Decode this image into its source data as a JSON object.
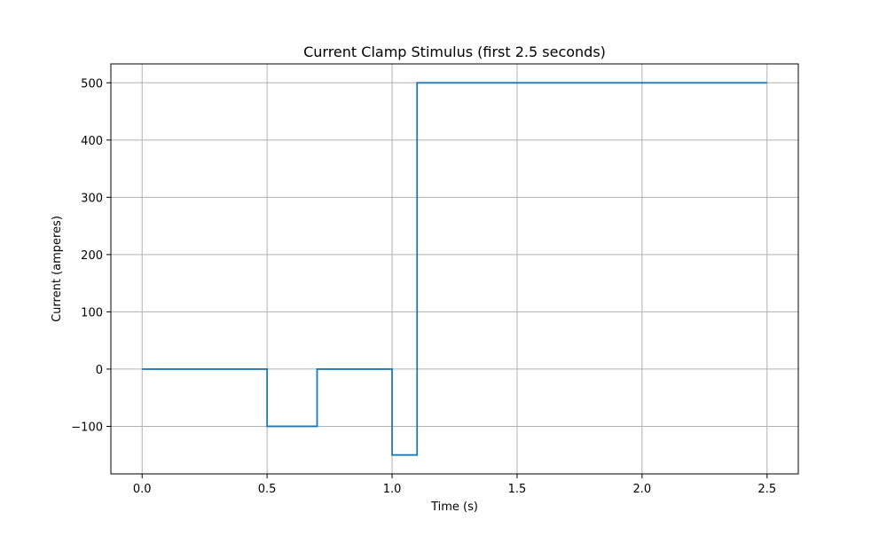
{
  "chart_data": {
    "type": "line",
    "title": "Current Clamp Stimulus (first 2.5 seconds)",
    "xlabel": "Time (s)",
    "ylabel": "Current (amperes)",
    "xlim": [
      -0.125,
      2.625
    ],
    "ylim": [
      -183,
      533
    ],
    "x_ticks": [
      0.0,
      0.5,
      1.0,
      1.5,
      2.0,
      2.5
    ],
    "x_tick_labels": [
      "0.0",
      "0.5",
      "1.0",
      "1.5",
      "2.0",
      "2.5"
    ],
    "y_ticks": [
      -100,
      0,
      100,
      200,
      300,
      400,
      500
    ],
    "y_tick_labels": [
      "−100",
      "0",
      "100",
      "200",
      "300",
      "400",
      "500"
    ],
    "grid": true,
    "series": [
      {
        "color": "#1f77b4",
        "x": [
          0.0,
          0.5,
          0.5,
          0.7,
          0.7,
          1.0,
          1.0,
          1.1,
          1.1,
          2.5
        ],
        "y": [
          0,
          0,
          -100,
          -100,
          0,
          0,
          -150,
          -150,
          500,
          500
        ]
      }
    ]
  }
}
